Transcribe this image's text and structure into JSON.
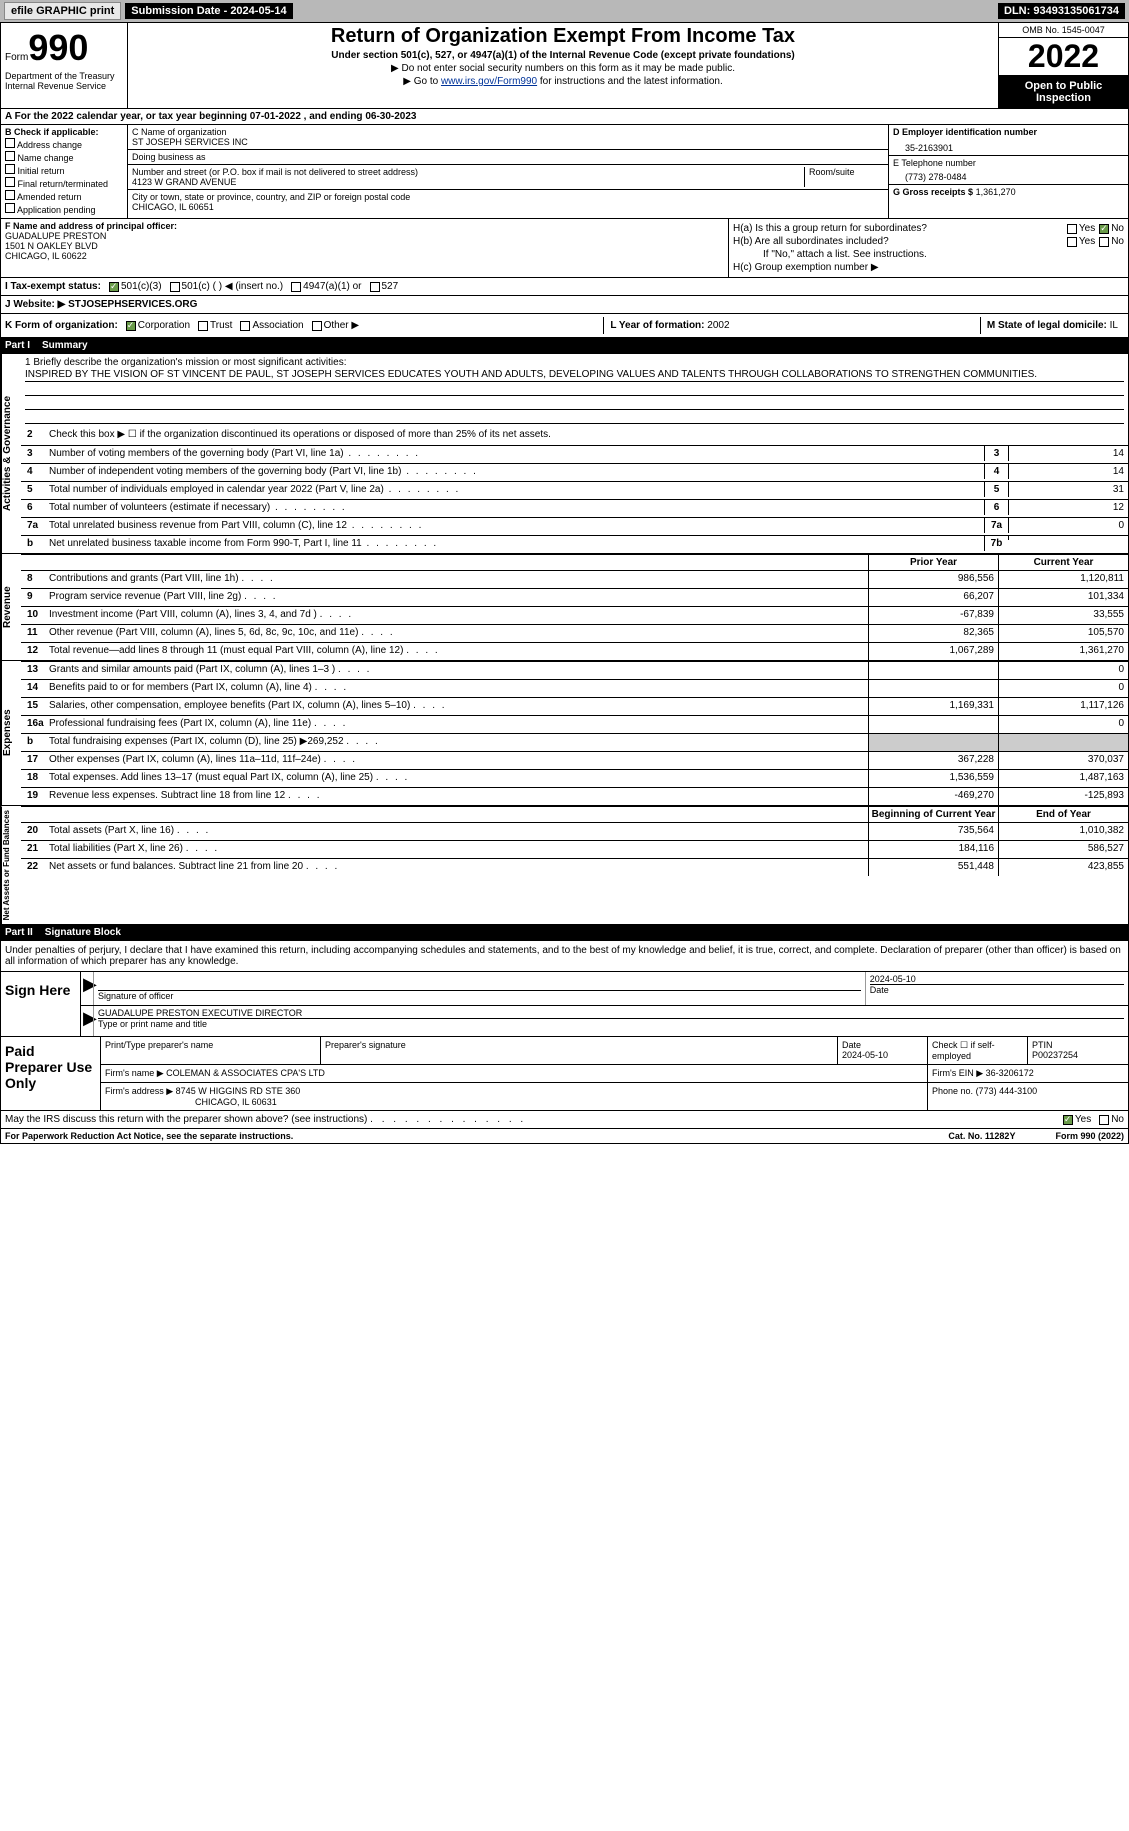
{
  "topbar": {
    "efile": "efile GRAPHIC print",
    "sub_label": "Submission Date - 2024-05-14",
    "dln": "DLN: 93493135061734"
  },
  "header": {
    "form_word": "Form",
    "form_num": "990",
    "dept": "Department of the Treasury\nInternal Revenue Service",
    "title": "Return of Organization Exempt From Income Tax",
    "sub1": "Under section 501(c), 527, or 4947(a)(1) of the Internal Revenue Code (except private foundations)",
    "sub2a": "▶ Do not enter social security numbers on this form as it may be made public.",
    "sub2b_pre": "▶ Go to ",
    "sub2b_link": "www.irs.gov/Form990",
    "sub2b_post": " for instructions and the latest information.",
    "omb": "OMB No. 1545-0047",
    "year": "2022",
    "open": "Open to Public Inspection"
  },
  "row_a": "A For the 2022 calendar year, or tax year beginning 07-01-2022    , and ending 06-30-2023",
  "b": {
    "label": "B Check if applicable:",
    "opts": [
      "Address change",
      "Name change",
      "Initial return",
      "Final return/terminated",
      "Amended return",
      "Application pending"
    ]
  },
  "c": {
    "name_lbl": "C Name of organization",
    "name": "ST JOSEPH SERVICES INC",
    "dba_lbl": "Doing business as",
    "dba": "",
    "addr_lbl": "Number and street (or P.O. box if mail is not delivered to street address)",
    "room_lbl": "Room/suite",
    "addr": "4123 W GRAND AVENUE",
    "city_lbl": "City or town, state or province, country, and ZIP or foreign postal code",
    "city": "CHICAGO, IL  60651"
  },
  "d": {
    "lbl": "D Employer identification number",
    "val": "35-2163901"
  },
  "e": {
    "lbl": "E Telephone number",
    "val": "(773) 278-0484"
  },
  "g": {
    "lbl": "G Gross receipts $",
    "val": "1,361,270"
  },
  "f": {
    "lbl": "F  Name and address of principal officer:",
    "name": "GUADALUPE PRESTON",
    "addr1": "1501 N OAKLEY BLVD",
    "addr2": "CHICAGO, IL  60622"
  },
  "h": {
    "a_lbl": "H(a)  Is this a group return for subordinates?",
    "b_lbl": "H(b)  Are all subordinates included?",
    "b_note": "If \"No,\" attach a list. See instructions.",
    "c_lbl": "H(c)  Group exemption number ▶"
  },
  "i": {
    "lbl": "I   Tax-exempt status:",
    "o1": "501(c)(3)",
    "o2": "501(c) (  ) ◀ (insert no.)",
    "o3": "4947(a)(1) or",
    "o4": "527"
  },
  "j": {
    "lbl": "J   Website: ▶ ",
    "val": "STJOSEPHSERVICES.ORG"
  },
  "k": {
    "lbl": "K Form of organization:",
    "o1": "Corporation",
    "o2": "Trust",
    "o3": "Association",
    "o4": "Other ▶",
    "l_lbl": "L Year of formation: ",
    "l_val": "2002",
    "m_lbl": "M State of legal domicile: ",
    "m_val": "IL"
  },
  "part1": {
    "num": "Part I",
    "title": "Summary"
  },
  "mission": {
    "lbl": "1   Briefly describe the organization's mission or most significant activities:",
    "text": "INSPIRED BY THE VISION OF ST VINCENT DE PAUL, ST JOSEPH SERVICES EDUCATES YOUTH AND ADULTS, DEVELOPING VALUES AND TALENTS THROUGH COLLABORATIONS TO STRENGTHEN COMMUNITIES."
  },
  "lines_gov": [
    {
      "n": "2",
      "t": "Check this box ▶ ☐  if the organization discontinued its operations or disposed of more than 25% of its net assets."
    },
    {
      "n": "3",
      "t": "Number of voting members of the governing body (Part VI, line 1a)",
      "bn": "3",
      "v": "14"
    },
    {
      "n": "4",
      "t": "Number of independent voting members of the governing body (Part VI, line 1b)",
      "bn": "4",
      "v": "14"
    },
    {
      "n": "5",
      "t": "Total number of individuals employed in calendar year 2022 (Part V, line 2a)",
      "bn": "5",
      "v": "31"
    },
    {
      "n": "6",
      "t": "Total number of volunteers (estimate if necessary)",
      "bn": "6",
      "v": "12"
    },
    {
      "n": "7a",
      "t": "Total unrelated business revenue from Part VIII, column (C), line 12",
      "bn": "7a",
      "v": "0"
    },
    {
      "n": "b",
      "t": "Net unrelated business taxable income from Form 990-T, Part I, line 11",
      "bn": "7b",
      "v": ""
    }
  ],
  "yr_hdr": {
    "prior": "Prior Year",
    "current": "Current Year"
  },
  "lines_rev": [
    {
      "n": "8",
      "t": "Contributions and grants (Part VIII, line 1h)",
      "p": "986,556",
      "c": "1,120,811"
    },
    {
      "n": "9",
      "t": "Program service revenue (Part VIII, line 2g)",
      "p": "66,207",
      "c": "101,334"
    },
    {
      "n": "10",
      "t": "Investment income (Part VIII, column (A), lines 3, 4, and 7d )",
      "p": "-67,839",
      "c": "33,555"
    },
    {
      "n": "11",
      "t": "Other revenue (Part VIII, column (A), lines 5, 6d, 8c, 9c, 10c, and 11e)",
      "p": "82,365",
      "c": "105,570"
    },
    {
      "n": "12",
      "t": "Total revenue—add lines 8 through 11 (must equal Part VIII, column (A), line 12)",
      "p": "1,067,289",
      "c": "1,361,270"
    }
  ],
  "lines_exp": [
    {
      "n": "13",
      "t": "Grants and similar amounts paid (Part IX, column (A), lines 1–3 )",
      "p": "",
      "c": "0"
    },
    {
      "n": "14",
      "t": "Benefits paid to or for members (Part IX, column (A), line 4)",
      "p": "",
      "c": "0"
    },
    {
      "n": "15",
      "t": "Salaries, other compensation, employee benefits (Part IX, column (A), lines 5–10)",
      "p": "1,169,331",
      "c": "1,117,126"
    },
    {
      "n": "16a",
      "t": "Professional fundraising fees (Part IX, column (A), line 11e)",
      "p": "",
      "c": "0"
    },
    {
      "n": "b",
      "t": "Total fundraising expenses (Part IX, column (D), line 25) ▶269,252",
      "p": "shade",
      "c": "shade"
    },
    {
      "n": "17",
      "t": "Other expenses (Part IX, column (A), lines 11a–11d, 11f–24e)",
      "p": "367,228",
      "c": "370,037"
    },
    {
      "n": "18",
      "t": "Total expenses. Add lines 13–17 (must equal Part IX, column (A), line 25)",
      "p": "1,536,559",
      "c": "1,487,163"
    },
    {
      "n": "19",
      "t": "Revenue less expenses. Subtract line 18 from line 12",
      "p": "-469,270",
      "c": "-125,893"
    }
  ],
  "net_hdr": {
    "begin": "Beginning of Current Year",
    "end": "End of Year"
  },
  "lines_net": [
    {
      "n": "20",
      "t": "Total assets (Part X, line 16)",
      "p": "735,564",
      "c": "1,010,382"
    },
    {
      "n": "21",
      "t": "Total liabilities (Part X, line 26)",
      "p": "184,116",
      "c": "586,527"
    },
    {
      "n": "22",
      "t": "Net assets or fund balances. Subtract line 21 from line 20",
      "p": "551,448",
      "c": "423,855"
    }
  ],
  "part2": {
    "num": "Part II",
    "title": "Signature Block"
  },
  "sig_text": "Under penalties of perjury, I declare that I have examined this return, including accompanying schedules and statements, and to the best of my knowledge and belief, it is true, correct, and complete. Declaration of preparer (other than officer) is based on all information of which preparer has any knowledge.",
  "sign": {
    "here": "Sign Here",
    "sig_lbl": "Signature of officer",
    "date": "2024-05-10",
    "date_lbl": "Date",
    "name": "GUADALUPE PRESTON  EXECUTIVE DIRECTOR",
    "name_lbl": "Type or print name and title"
  },
  "prep": {
    "here": "Paid Preparer Use Only",
    "print_lbl": "Print/Type preparer's name",
    "sig_lbl": "Preparer's signature",
    "date_lbl": "Date",
    "date": "2024-05-10",
    "check_lbl": "Check ☐ if self-employed",
    "ptin_lbl": "PTIN",
    "ptin": "P00237254",
    "firm_lbl": "Firm's name     ▶",
    "firm": "COLEMAN & ASSOCIATES CPA'S LTD",
    "ein_lbl": "Firm's EIN ▶",
    "ein": "36-3206172",
    "addr_lbl": "Firm's address ▶",
    "addr1": "8745 W HIGGINS RD STE 360",
    "addr2": "CHICAGO, IL  60631",
    "phone_lbl": "Phone no.",
    "phone": "(773) 444-3100"
  },
  "discuss": "May the IRS discuss this return with the preparer shown above? (see instructions)",
  "footer": {
    "left": "For Paperwork Reduction Act Notice, see the separate instructions.",
    "mid": "Cat. No. 11282Y",
    "right": "Form 990 (2022)"
  },
  "vlabels": {
    "gov": "Activities & Governance",
    "rev": "Revenue",
    "exp": "Expenses",
    "net": "Net Assets or Fund Balances"
  },
  "yes": "Yes",
  "no": "No"
}
